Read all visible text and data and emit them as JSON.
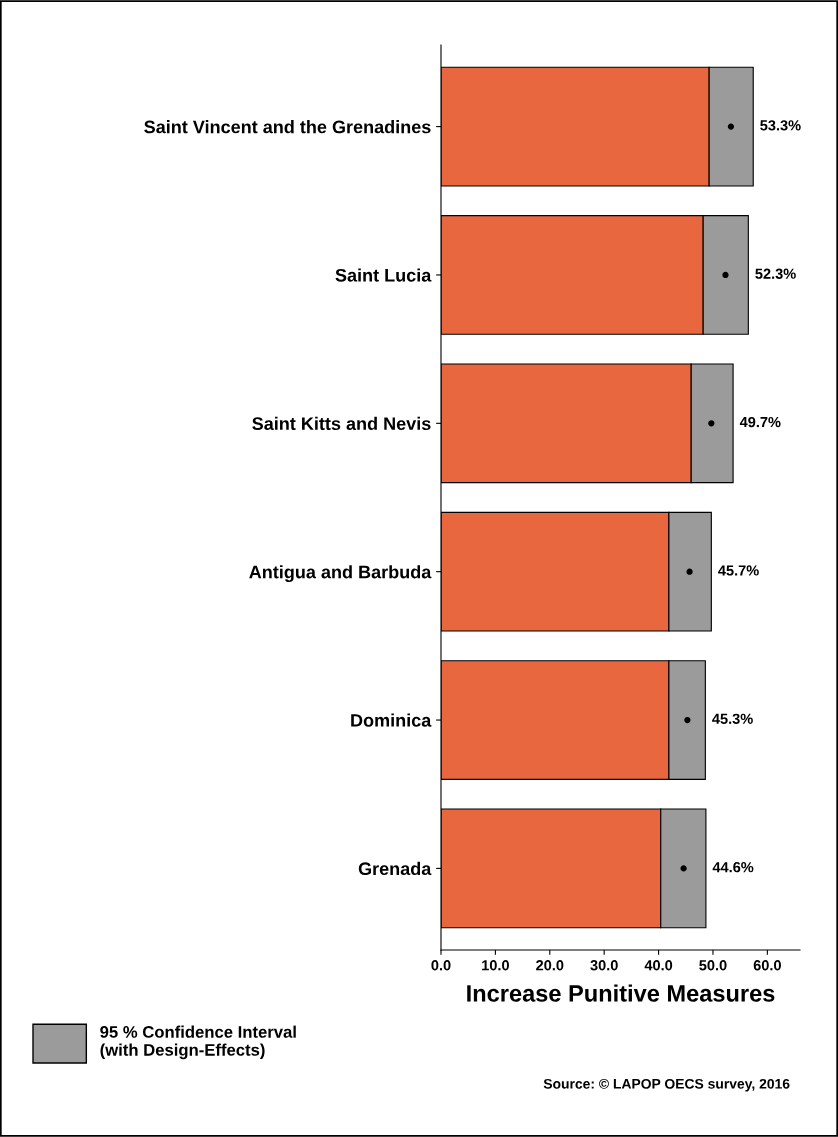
{
  "chart_data": {
    "type": "bar",
    "orientation": "horizontal",
    "stacked": true,
    "xlabel": "Increase Punitive Measures",
    "categories": [
      "Saint Vincent and the Grenadines",
      "Saint Lucia",
      "Saint Kitts and Nevis",
      "Antigua and Barbuda",
      "Dominica",
      "Grenada"
    ],
    "series": [
      {
        "color": "#e8673f",
        "values": [
          49.3,
          48.2,
          46.0,
          41.9,
          41.9,
          40.4
        ]
      },
      {
        "name": "95 % Confidence Interval\n(with Design-Effects)",
        "color": "#9b9b9b",
        "values": [
          8.1,
          8.3,
          7.7,
          7.8,
          6.7,
          8.3
        ]
      },
      {
        "type": "scatter",
        "color": "#000000",
        "marker": "circle",
        "values": [
          53.3,
          52.3,
          49.7,
          45.7,
          45.3,
          44.6
        ],
        "value_labels": [
          "53.3%",
          "52.3%",
          "49.7%",
          "45.7%",
          "45.3%",
          "44.6%"
        ]
      }
    ],
    "xlim": [
      0,
      66
    ],
    "xticks": [
      {
        "value": 0,
        "label": "0.0"
      },
      {
        "value": 10,
        "label": "10.0"
      },
      {
        "value": 20,
        "label": "20.0"
      },
      {
        "value": 30,
        "label": "30.0"
      },
      {
        "value": 40,
        "label": "40.0"
      },
      {
        "value": 50,
        "label": "50.0"
      },
      {
        "value": 60,
        "label": "60.0"
      }
    ],
    "grid": false,
    "legend": "bottom left",
    "annotations": [
      "Source: © LAPOP OECS survey, 2016"
    ]
  }
}
